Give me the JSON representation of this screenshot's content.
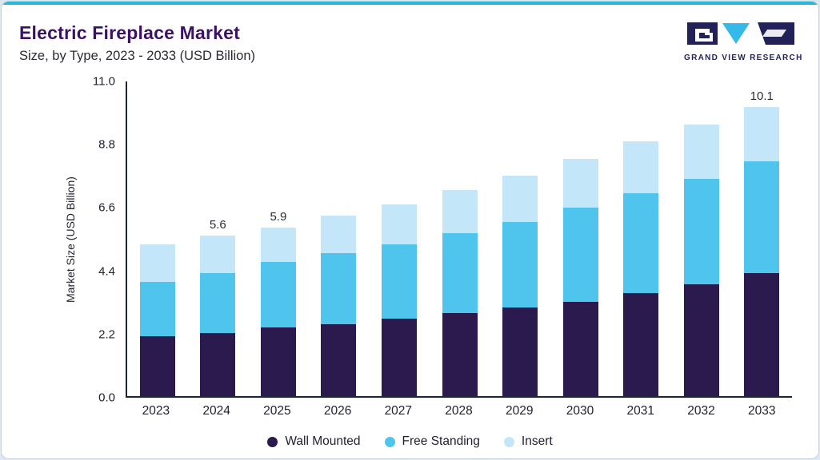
{
  "header": {
    "title": "Electric Fireplace Market",
    "subtitle": "Size, by Type, 2023 - 2033 (USD Billion)"
  },
  "logo": {
    "text": "GRAND VIEW RESEARCH",
    "navy": "#232258",
    "cyan": "#35b9e9"
  },
  "chart_data": {
    "type": "bar",
    "stacked": true,
    "title": "Electric Fireplace Market Size, by Type, 2023 - 2033 (USD Billion)",
    "ylabel": "Market Size (USD Billion)",
    "ylim": [
      0,
      11.0
    ],
    "yticks": [
      "0.0",
      "2.2",
      "4.4",
      "6.6",
      "8.8",
      "11.0"
    ],
    "grid": false,
    "legend_position": "bottom",
    "categories": [
      "2023",
      "2024",
      "2025",
      "2026",
      "2027",
      "2028",
      "2029",
      "2030",
      "2031",
      "2032",
      "2033"
    ],
    "series": [
      {
        "name": "Wall Mounted",
        "color": "#2b1a4e",
        "values": [
          2.1,
          2.2,
          2.4,
          2.5,
          2.7,
          2.9,
          3.1,
          3.3,
          3.6,
          3.9,
          4.3
        ]
      },
      {
        "name": "Free Standing",
        "color": "#4fc4ec",
        "values": [
          1.9,
          2.1,
          2.3,
          2.5,
          2.6,
          2.8,
          3.0,
          3.3,
          3.5,
          3.7,
          3.9
        ]
      },
      {
        "name": "Insert",
        "color": "#c3e7f8",
        "values": [
          1.3,
          1.3,
          1.2,
          1.3,
          1.4,
          1.5,
          1.6,
          1.7,
          1.8,
          1.9,
          1.9
        ]
      }
    ],
    "totals": [
      5.3,
      5.6,
      5.9,
      6.3,
      6.7,
      7.2,
      7.7,
      8.3,
      8.9,
      9.5,
      10.1
    ],
    "total_labels": {
      "2024": "5.6",
      "2025": "5.9",
      "2033": "10.1"
    }
  }
}
